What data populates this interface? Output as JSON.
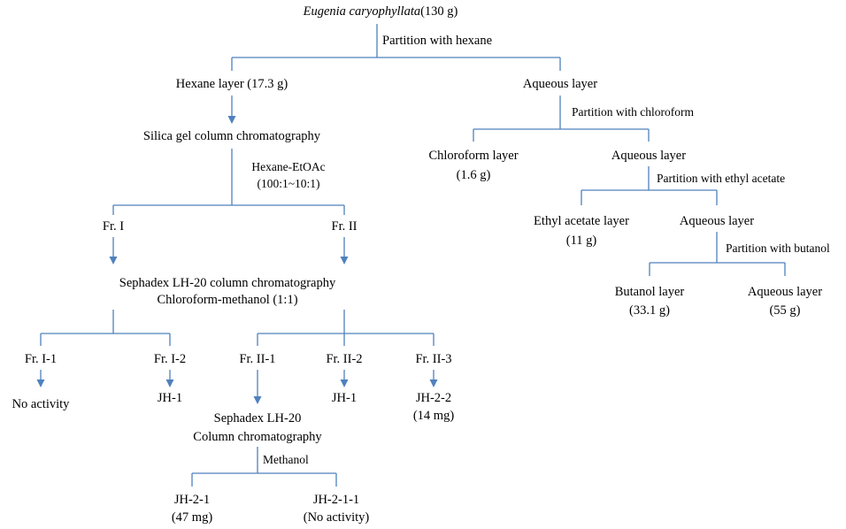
{
  "root": {
    "name": "Eugenia caryophyllata",
    "amount": "(130 g)"
  },
  "steps": {
    "hexane": "Partition  with  hexane",
    "chloroform": "Partition with chloroform",
    "ethyl_acetate": "Partition with ethyl acetate",
    "butanol": "Partition with butanol",
    "hexane_etoac": "Hexane-EtOAc",
    "hexane_etoac_ratio": "(100:1~10:1)",
    "methanol": "Methanol"
  },
  "nodes": {
    "hexane_layer": "Hexane  layer  (17.3 g)",
    "aqueous_1": "Aqueous  layer",
    "silica": "Silica  gel column  chromatography",
    "chloroform_layer": "Chloroform   layer",
    "chloroform_amount": "(1.6 g)",
    "aqueous_2": "Aqueous  layer",
    "ethyl_acetate_layer": "Ethyl  acetate  layer",
    "ethyl_acetate_amount": "(11 g)",
    "aqueous_3": "Aqueous  layer",
    "butanol_layer": "Butanol   layer",
    "butanol_amount": "(33.1 g)",
    "aqueous_4": "Aqueous  layer",
    "aqueous_4_amount": "(55 g)",
    "fr1": "Fr. I",
    "fr2": "Fr. II",
    "sephadex": "Sephadex  LH-20  column  chromatography",
    "sephadex_solvent": "Chloroform-methanol   (1:1)",
    "fr1_1": "Fr. I-1",
    "fr1_2": "Fr. I-2",
    "fr2_1": "Fr. II-1",
    "fr2_2": "Fr. II-2",
    "fr2_3": "Fr. II-3",
    "no_activity": "No activity",
    "jh1_a": "JH-1",
    "jh1_b": "JH-1",
    "jh22": "JH-2-2",
    "jh22_amount": "(14 mg)",
    "sephadex2": "Sephadex LH-20",
    "sephadex2_b": "Column  chromatography",
    "jh21": "JH-2-1",
    "jh21_amount": "(47 mg)",
    "jh211": "JH-2-1-1",
    "jh211_note": "(No activity)"
  }
}
